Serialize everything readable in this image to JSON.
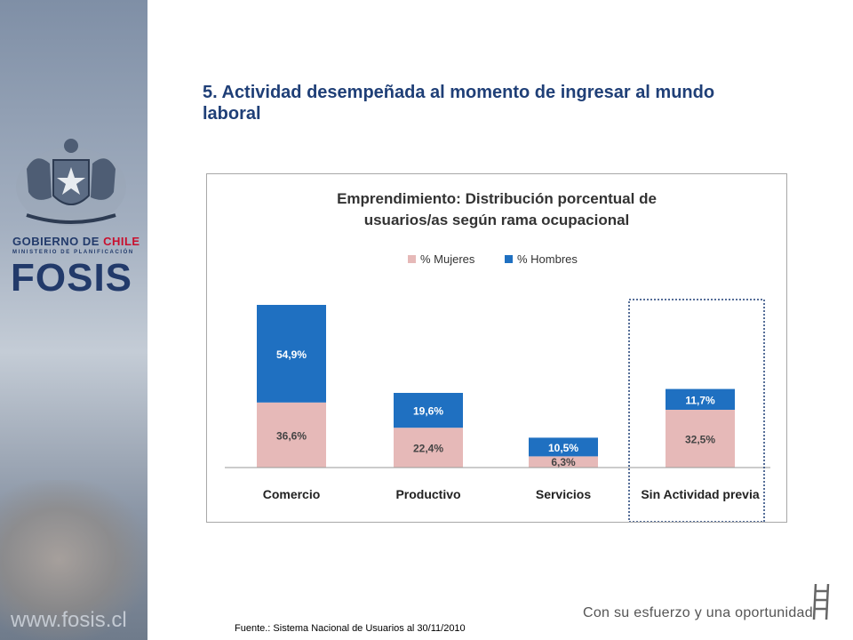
{
  "branding": {
    "gov_prefix": "GOBIERNO DE ",
    "gov_country": "CHILE",
    "ministry": "MINISTERIO DE PLANIFICACIÓN",
    "logo": "FOSIS",
    "website": "www.fosis.cl",
    "slogan": "Con su esfuerzo y una oportunidad",
    "accent_color": "#1f3f77",
    "country_color": "#c8102e"
  },
  "slide": {
    "title": "5. Actividad desempeñada al momento de ingresar al mundo laboral",
    "source": "Fuente.: Sistema Nacional de Usuarios al 30/11/2010"
  },
  "chart_data": {
    "type": "bar",
    "stacked": true,
    "title_line1": "Emprendimiento: Distribución porcentual de",
    "title_line2": "usuarios/as según rama ocupacional",
    "categories": [
      "Comercio",
      "Productivo",
      "Servicios",
      "Sin Actividad previa"
    ],
    "series": [
      {
        "name": "% Mujeres",
        "values": [
          36.6,
          22.4,
          6.3,
          32.5
        ],
        "labels": [
          "36,6%",
          "22,4%",
          "6,3%",
          "32,5%"
        ],
        "color": "#e6b9b8"
      },
      {
        "name": "% Hombres",
        "values": [
          54.9,
          19.6,
          10.5,
          11.7
        ],
        "labels": [
          "54,9%",
          "19,6%",
          "10,5%",
          "11,7%"
        ],
        "color": "#1f70c1"
      }
    ],
    "legend_position": "top",
    "grid": false,
    "highlighted_category": "Sin Actividad previa"
  }
}
